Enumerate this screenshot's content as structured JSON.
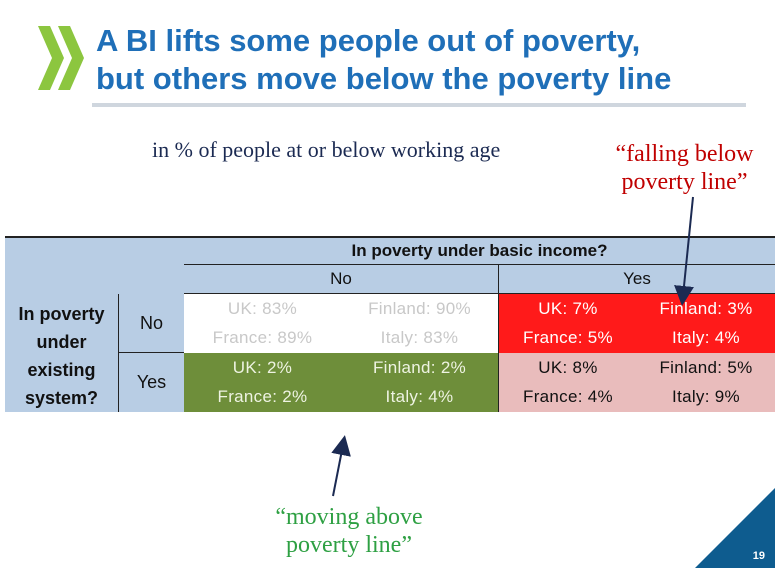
{
  "slide": {
    "title_line1": "A BI lifts some people out of poverty,",
    "title_line2": "but others move below the poverty line",
    "subtitle": "in % of people at or below working age",
    "callout_falling_line1": "“falling below",
    "callout_falling_line2": "poverty line”",
    "callout_moving_line1": "“moving above",
    "callout_moving_line2": "poverty line”",
    "page_number": "19",
    "colors": {
      "title": "#1f6fb8",
      "header_bg": "#b8cde4",
      "falling_cell": "#ff1a1a",
      "moving_cell": "#6e8e3a",
      "stay_poor_cell": "#e9bcbc",
      "callout_red": "#c00000",
      "callout_green": "#2ea043",
      "logo_green": "#8cc63f",
      "corner_blue": "#0e5c8f"
    },
    "icons": [
      "oecd-logo-icon",
      "arrow-down-icon",
      "arrow-up-icon"
    ]
  },
  "table": {
    "column_header": "In poverty under basic income?",
    "col_no": "No",
    "col_yes": "Yes",
    "row_header_line1": "In poverty",
    "row_header_line2": "under",
    "row_header_line3": "existing",
    "row_header_line4": "system?",
    "row_no": "No",
    "row_yes": "Yes",
    "cells": {
      "no_no": [
        "UK: 83%",
        "Finland: 90%",
        "France: 89%",
        "Italy: 83%"
      ],
      "no_yes": [
        "UK: 7%",
        "Finland: 3%",
        "France: 5%",
        "Italy: 4%"
      ],
      "yes_no": [
        "UK: 2%",
        "Finland: 2%",
        "France: 2%",
        "Italy: 4%"
      ],
      "yes_yes": [
        "UK: 8%",
        "Finland: 5%",
        "France: 4%",
        "Italy: 9%"
      ]
    }
  }
}
